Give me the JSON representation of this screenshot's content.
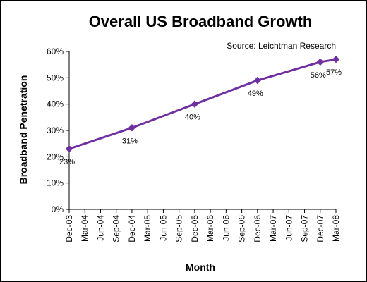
{
  "chart_data": {
    "type": "line",
    "title": "Overall US Broadband Growth",
    "source": "Source: Leichtman Research",
    "xlabel": "Month",
    "ylabel": "Broadband Penetration",
    "categories": [
      "Dec-03",
      "Mar-04",
      "Jun-04",
      "Sep-04",
      "Dec-04",
      "Mar-05",
      "Jun-05",
      "Sep-05",
      "Dec-05",
      "Mar-06",
      "Jun-06",
      "Sep-06",
      "Dec-06",
      "Mar-07",
      "Jun-07",
      "Sep-07",
      "Dec-07",
      "Mar-08"
    ],
    "yticks": [
      "0%",
      "10%",
      "20%",
      "30%",
      "40%",
      "50%",
      "60%"
    ],
    "ylim": [
      0,
      60
    ],
    "grid": false,
    "series": [
      {
        "color": "#7030a0",
        "points": [
          {
            "x": "Dec-03",
            "y": 23,
            "label": "23%"
          },
          {
            "x": "Dec-04",
            "y": 31,
            "label": "31%"
          },
          {
            "x": "Dec-05",
            "y": 40,
            "label": "40%"
          },
          {
            "x": "Dec-06",
            "y": 49,
            "label": "49%"
          },
          {
            "x": "Dec-07",
            "y": 56,
            "label": "56%"
          },
          {
            "x": "Mar-08",
            "y": 57,
            "label": "57%"
          }
        ]
      }
    ]
  }
}
